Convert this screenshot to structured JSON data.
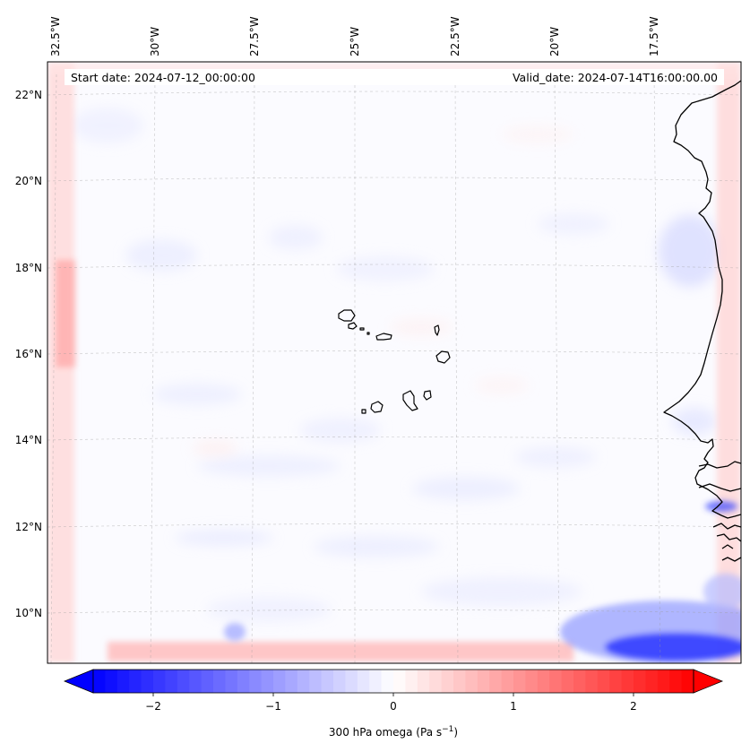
{
  "header": {
    "start_date": "Start date: 2024-07-12_00:00:00",
    "valid_date": "Valid_date: 2024-07-14T16:00:00.00"
  },
  "map": {
    "lon_labels": [
      "32.5°W",
      "30°W",
      "27.5°W",
      "25°W",
      "22.5°W",
      "20°W",
      "17.5°W"
    ],
    "lat_labels": [
      "22°N",
      "20°N",
      "18°N",
      "16°N",
      "14°N",
      "12°N",
      "10°N"
    ]
  },
  "colorbar": {
    "ticks": [
      "−2",
      "−1",
      "0",
      "1",
      "2"
    ],
    "label_main": "300 hPa omega (Pa s",
    "label_exp": "−1",
    "label_close": ")",
    "min": -2.6,
    "max": 2.6,
    "neg_color": "#0000ff",
    "pos_color": "#ff0000"
  }
}
